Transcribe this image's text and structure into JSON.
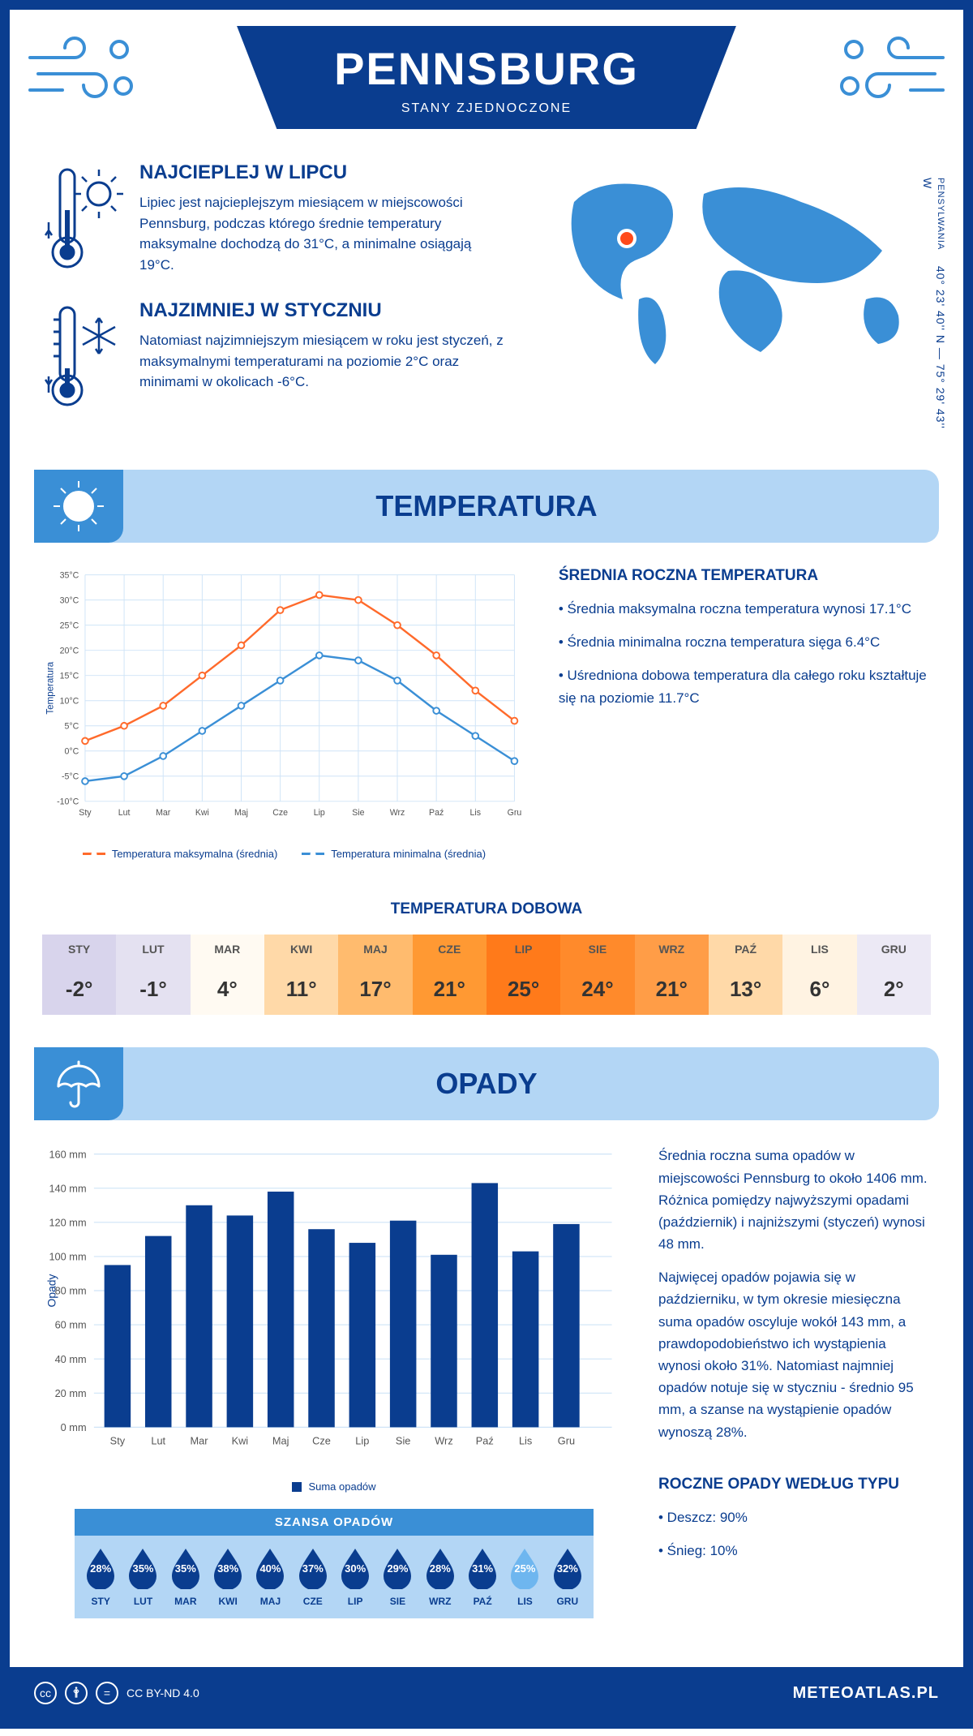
{
  "header": {
    "city": "PENNSBURG",
    "country": "STANY ZJEDNOCZONE"
  },
  "coords": {
    "text": "40° 23' 40'' N — 75° 29' 43'' W",
    "region": "PENSYLWANIA"
  },
  "intro": {
    "hot": {
      "title": "NAJCIEPLEJ W LIPCU",
      "text": "Lipiec jest najcieplejszym miesiącem w miejscowości Pennsburg, podczas którego średnie temperatury maksymalne dochodzą do 31°C, a minimalne osiągają 19°C."
    },
    "cold": {
      "title": "NAJZIMNIEJ W STYCZNIU",
      "text": "Natomiast najzimniejszym miesiącem w roku jest styczeń, z maksymalnymi temperaturami na poziomie 2°C oraz minimami w okolicach -6°C."
    }
  },
  "temp_section": {
    "title": "TEMPERATURA",
    "chart": {
      "type": "line",
      "months": [
        "Sty",
        "Lut",
        "Mar",
        "Kwi",
        "Maj",
        "Cze",
        "Lip",
        "Sie",
        "Wrz",
        "Paź",
        "Lis",
        "Gru"
      ],
      "ylabel": "Temperatura",
      "ylim": [
        -10,
        35
      ],
      "ytick_step": 5,
      "grid_color": "#cfe4f7",
      "series": [
        {
          "name": "Temperatura maksymalna (średnia)",
          "color": "#ff6a2b",
          "values": [
            2,
            5,
            9,
            15,
            21,
            28,
            31,
            30,
            25,
            19,
            12,
            6
          ]
        },
        {
          "name": "Temperatura minimalna (średnia)",
          "color": "#3a8fd6",
          "values": [
            -6,
            -5,
            -1,
            4,
            9,
            14,
            19,
            18,
            14,
            8,
            3,
            -2
          ]
        }
      ]
    },
    "summary": {
      "heading": "ŚREDNIA ROCZNA TEMPERATURA",
      "p1": "• Średnia maksymalna roczna temperatura wynosi 17.1°C",
      "p2": "• Średnia minimalna roczna temperatura sięga 6.4°C",
      "p3": "• Uśredniona dobowa temperatura dla całego roku kształtuje się na poziomie 11.7°C"
    },
    "daily_heading": "TEMPERATURA DOBOWA",
    "daily": {
      "months": [
        "STY",
        "LUT",
        "MAR",
        "KWI",
        "MAJ",
        "CZE",
        "LIP",
        "SIE",
        "WRZ",
        "PAŹ",
        "LIS",
        "GRU"
      ],
      "values": [
        "-2°",
        "-1°",
        "4°",
        "11°",
        "17°",
        "21°",
        "25°",
        "24°",
        "21°",
        "13°",
        "6°",
        "2°"
      ],
      "bg": [
        "#d8d4ec",
        "#e4e1f1",
        "#fffaf2",
        "#ffd9a8",
        "#ffbb6e",
        "#ff9933",
        "#ff7a1a",
        "#ff8a2b",
        "#ff9d47",
        "#ffd9a8",
        "#fff3e2",
        "#ece9f5"
      ]
    }
  },
  "precip_section": {
    "title": "OPADY",
    "chart": {
      "type": "bar",
      "months": [
        "Sty",
        "Lut",
        "Mar",
        "Kwi",
        "Maj",
        "Cze",
        "Lip",
        "Sie",
        "Wrz",
        "Paź",
        "Lis",
        "Gru"
      ],
      "ylabel": "Opady",
      "ylim": [
        0,
        160
      ],
      "ytick_step": 20,
      "grid_color": "#cfe4f7",
      "bar_color": "#0a3d8f",
      "values": [
        95,
        112,
        130,
        124,
        138,
        116,
        108,
        121,
        101,
        143,
        103,
        119
      ],
      "legend": "Suma opadów"
    },
    "summary": {
      "p1": "Średnia roczna suma opadów w miejscowości Pennsburg to około 1406 mm. Różnica pomiędzy najwyższymi opadami (październik) i najniższymi (styczeń) wynosi 48 mm.",
      "p2": "Najwięcej opadów pojawia się w październiku, w tym okresie miesięczna suma opadów oscyluje wokół 143 mm, a prawdopodobieństwo ich wystąpienia wynosi około 31%. Natomiast najmniej opadów notuje się w styczniu - średnio 95 mm, a szanse na wystąpienie opadów wynoszą 28%."
    },
    "chance": {
      "title": "SZANSA OPADÓW",
      "months": [
        "STY",
        "LUT",
        "MAR",
        "KWI",
        "MAJ",
        "CZE",
        "LIP",
        "SIE",
        "WRZ",
        "PAŹ",
        "LIS",
        "GRU"
      ],
      "values": [
        "28%",
        "35%",
        "35%",
        "38%",
        "40%",
        "37%",
        "30%",
        "29%",
        "28%",
        "31%",
        "25%",
        "32%"
      ],
      "colors": [
        "#0a3d8f",
        "#0a3d8f",
        "#0a3d8f",
        "#0a3d8f",
        "#0a3d8f",
        "#0a3d8f",
        "#0a3d8f",
        "#0a3d8f",
        "#0a3d8f",
        "#0a3d8f",
        "#6eb6ef",
        "#0a3d8f"
      ]
    },
    "type_heading": "ROCZNE OPADY WEDŁUG TYPU",
    "type_rain": "• Deszcz: 90%",
    "type_snow": "• Śnieg: 10%"
  },
  "footer": {
    "license": "CC BY-ND 4.0",
    "site": "METEOATLAS.PL"
  }
}
